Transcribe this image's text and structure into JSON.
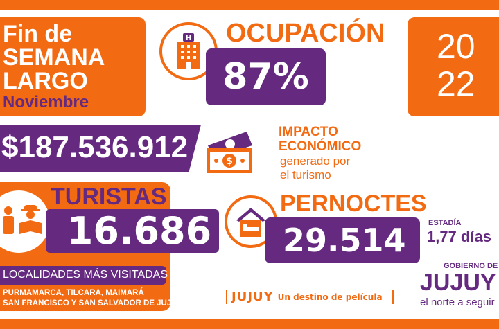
{
  "header": {
    "line1": "Fin de",
    "line2": "SEMANA",
    "line3": "LARGO",
    "month": "Noviembre"
  },
  "year": {
    "top": "20",
    "bottom": "22"
  },
  "occupancy": {
    "label": "OCUPACIÓN",
    "value": "87%",
    "icon": "hotel-icon"
  },
  "economic": {
    "value": "$187.536.912",
    "title1": "IMPACTO",
    "title2": "ECONÓMICO",
    "sub1": "generado por",
    "sub2": "el turismo",
    "icon": "money-icon"
  },
  "tourists": {
    "label": "TURISTAS",
    "value": "16.686",
    "icon": "tourists-icon"
  },
  "places": {
    "title": "LOCALIDADES MÁS VISITADAS",
    "line1": "PURMAMARCA, TILCARA, MAIMARÁ",
    "line2": "SAN FRANCISCO Y SAN SALVADOR DE JUJUY"
  },
  "overnights": {
    "label": "PERNOCTES",
    "value": "29.514",
    "icon": "house-bed-icon"
  },
  "stay": {
    "label": "ESTADÍA",
    "value": "1,77 días"
  },
  "tagline": {
    "brand": "JUJUY",
    "text": "Un destino de película"
  },
  "gov": {
    "top": "GOBIERNO DE",
    "name": "JUJUY",
    "slogan": "el norte a seguir"
  },
  "colors": {
    "orange": "#f26a12",
    "purple": "#652a80"
  }
}
